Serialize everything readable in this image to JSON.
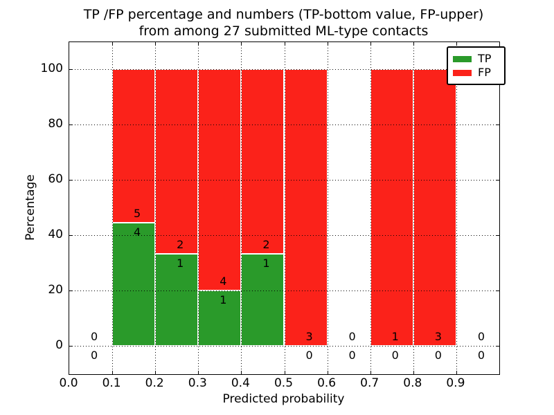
{
  "figure": {
    "title_line1": "TP /FP percentage and numbers (TP-bottom value, FP-upper)",
    "title_line2": "from among 27 submitted ML-type contacts"
  },
  "chart_data": {
    "type": "bar",
    "stacked": true,
    "title": "TP /FP percentage and numbers (TP-bottom value, FP-upper) from among 27 submitted ML-type contacts",
    "xlabel": "Predicted probability",
    "ylabel": "Percentage",
    "xlim": [
      0.0,
      1.0
    ],
    "ylim": [
      -10,
      110
    ],
    "xticks": [
      0.0,
      0.1,
      0.2,
      0.3,
      0.4,
      0.5,
      0.6,
      0.7,
      0.8,
      0.9
    ],
    "xtick_labels": [
      "0.0",
      "0.1",
      "0.2",
      "0.3",
      "0.4",
      "0.5",
      "0.6",
      "0.7",
      "0.8",
      "0.9"
    ],
    "yticks": [
      0,
      20,
      40,
      60,
      80,
      100
    ],
    "ytick_labels": [
      "0",
      "20",
      "40",
      "60",
      "80",
      "100"
    ],
    "grid": "dotted both axes, drawn over bars",
    "total_contacts": 27,
    "annotation_note": "each bin labeled with FP count above the TP/FP boundary and TP count below it",
    "legend": {
      "position": "upper right",
      "entries": [
        {
          "label": "TP",
          "color": "#2A9A2A"
        },
        {
          "label": "FP",
          "color": "#FB221A"
        }
      ]
    },
    "bins": [
      {
        "range": [
          0.0,
          0.1
        ],
        "tp_count": 0,
        "fp_count": 0,
        "tp_pct": 0,
        "fp_pct": 0
      },
      {
        "range": [
          0.1,
          0.2
        ],
        "tp_count": 4,
        "fp_count": 5,
        "tp_pct": 44.44,
        "fp_pct": 55.56
      },
      {
        "range": [
          0.2,
          0.3
        ],
        "tp_count": 1,
        "fp_count": 2,
        "tp_pct": 33.33,
        "fp_pct": 66.67
      },
      {
        "range": [
          0.3,
          0.4
        ],
        "tp_count": 1,
        "fp_count": 4,
        "tp_pct": 20.0,
        "fp_pct": 80.0
      },
      {
        "range": [
          0.4,
          0.5
        ],
        "tp_count": 1,
        "fp_count": 2,
        "tp_pct": 33.33,
        "fp_pct": 66.67
      },
      {
        "range": [
          0.5,
          0.6
        ],
        "tp_count": 0,
        "fp_count": 3,
        "tp_pct": 0,
        "fp_pct": 100
      },
      {
        "range": [
          0.6,
          0.7
        ],
        "tp_count": 0,
        "fp_count": 0,
        "tp_pct": 0,
        "fp_pct": 0
      },
      {
        "range": [
          0.7,
          0.8
        ],
        "tp_count": 0,
        "fp_count": 1,
        "tp_pct": 0,
        "fp_pct": 100
      },
      {
        "range": [
          0.8,
          0.9
        ],
        "tp_count": 0,
        "fp_count": 3,
        "tp_pct": 0,
        "fp_pct": 100
      },
      {
        "range": [
          0.9,
          1.0
        ],
        "tp_count": 0,
        "fp_count": 0,
        "tp_pct": 0,
        "fp_pct": 0
      }
    ],
    "colors": {
      "tp_bar": "#2A9A2A",
      "fp_bar": "#FB221A",
      "bar_edge": "#FFFFFF",
      "frame": "#000000",
      "background": "#FFFFFF"
    }
  }
}
